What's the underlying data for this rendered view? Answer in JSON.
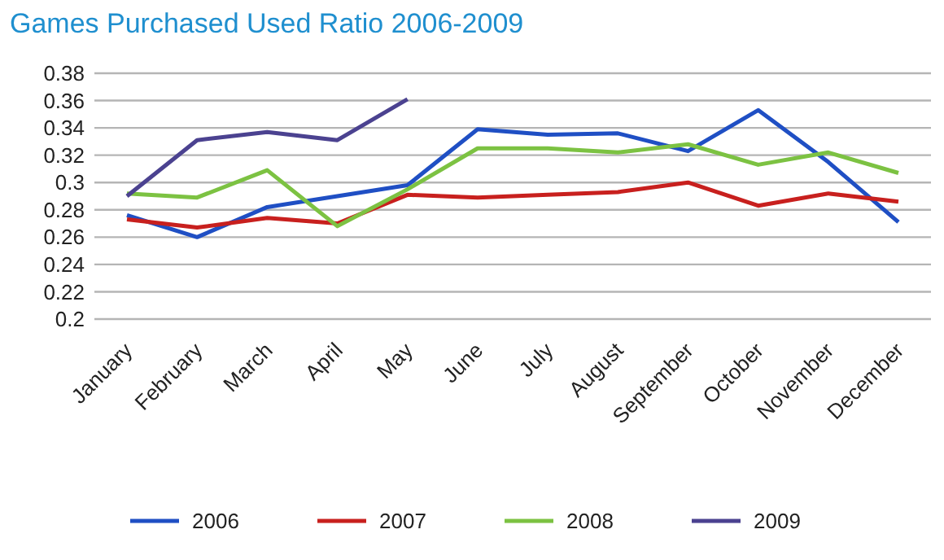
{
  "chart_data": {
    "type": "line",
    "title": "Games Purchased Used Ratio 2006-2009",
    "categories": [
      "January",
      "February",
      "March",
      "April",
      "May",
      "June",
      "July",
      "August",
      "September",
      "October",
      "November",
      "December"
    ],
    "series": [
      {
        "name": "2006",
        "color": "#1f4fc4",
        "values": [
          0.276,
          0.26,
          0.282,
          0.29,
          0.298,
          0.339,
          0.335,
          0.336,
          0.323,
          0.353,
          0.315,
          0.271
        ]
      },
      {
        "name": "2007",
        "color": "#c8201e",
        "values": [
          0.273,
          0.267,
          0.274,
          0.27,
          0.291,
          0.289,
          0.291,
          0.293,
          0.3,
          0.283,
          0.292,
          0.286
        ]
      },
      {
        "name": "2008",
        "color": "#7cc242",
        "values": [
          0.292,
          0.289,
          0.309,
          0.268,
          0.295,
          0.325,
          0.325,
          0.322,
          0.328,
          0.313,
          0.322,
          0.307
        ]
      },
      {
        "name": "2009",
        "color": "#4b4290",
        "values": [
          0.29,
          0.331,
          0.337,
          0.331,
          0.361,
          null,
          null,
          null,
          null,
          null,
          null,
          null
        ]
      }
    ],
    "ylim": [
      0.2,
      0.38
    ],
    "yticks": [
      0.2,
      0.22,
      0.24,
      0.26,
      0.28,
      0.3,
      0.32,
      0.34,
      0.36,
      0.38
    ],
    "grid": "y",
    "legend": "bottom",
    "marker": "none",
    "line_style": "solid"
  }
}
